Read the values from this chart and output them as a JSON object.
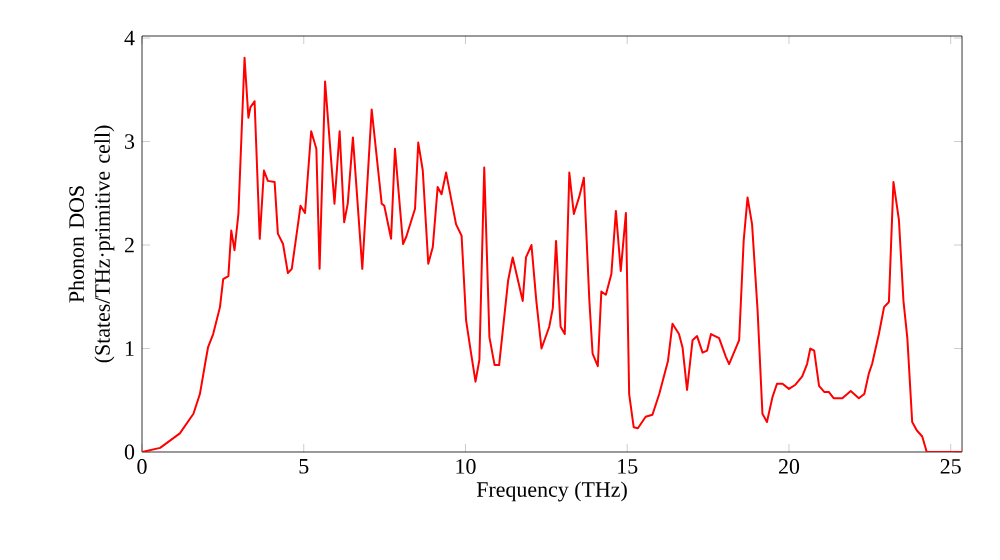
{
  "chart_data": {
    "type": "line",
    "xlabel": "Frequency (THz)",
    "ylabel": "Phonon DOS (States/THz·primitive cell)",
    "xlim": [
      0,
      25.35
    ],
    "ylim": [
      0,
      4.02
    ],
    "xticks": [
      0,
      5,
      10,
      15,
      20,
      25
    ],
    "yticks": [
      0,
      1,
      2,
      3,
      4
    ],
    "grid": false,
    "marker": "none",
    "line_style": "solid",
    "series": [
      {
        "color": "#ff0000",
        "x": [
          0,
          0.56,
          1.17,
          1.59,
          1.79,
          1.95,
          2.04,
          2.2,
          2.41,
          2.51,
          2.67,
          2.76,
          2.86,
          2.98,
          3.17,
          3.29,
          3.35,
          3.48,
          3.64,
          3.77,
          3.89,
          4.1,
          4.2,
          4.36,
          4.51,
          4.63,
          4.84,
          4.9,
          5.04,
          5.23,
          5.39,
          5.49,
          5.66,
          5.95,
          6.11,
          6.25,
          6.36,
          6.52,
          6.81,
          7.1,
          7.41,
          7.49,
          7.7,
          7.82,
          8.07,
          8.17,
          8.44,
          8.54,
          8.68,
          8.85,
          8.99,
          9.14,
          9.26,
          9.4,
          9.71,
          9.88,
          10.02,
          10.16,
          10.31,
          10.43,
          10.58,
          10.74,
          10.9,
          11.04,
          11.32,
          11.46,
          11.77,
          11.87,
          12.04,
          12.19,
          12.35,
          12.59,
          12.7,
          12.8,
          12.94,
          13.07,
          13.21,
          13.35,
          13.52,
          13.66,
          13.83,
          13.93,
          14.09,
          14.2,
          14.34,
          14.51,
          14.65,
          14.8,
          14.96,
          15.06,
          15.2,
          15.33,
          15.57,
          15.78,
          15.99,
          16.26,
          16.4,
          16.6,
          16.71,
          16.85,
          17.02,
          17.16,
          17.33,
          17.47,
          17.59,
          17.84,
          18.05,
          18.15,
          18.46,
          18.6,
          18.72,
          18.86,
          19.03,
          19.18,
          19.32,
          19.49,
          19.63,
          19.8,
          20.0,
          20.2,
          20.41,
          20.56,
          20.66,
          20.78,
          20.93,
          21.09,
          21.23,
          21.38,
          21.65,
          21.91,
          22.16,
          22.33,
          22.47,
          22.57,
          22.78,
          22.94,
          23.09,
          23.23,
          23.4,
          23.54,
          23.66,
          23.81,
          23.95,
          24.12,
          24.26,
          25.35
        ],
        "values": [
          0,
          0.04,
          0.18,
          0.37,
          0.56,
          0.85,
          1.01,
          1.14,
          1.4,
          1.67,
          1.7,
          2.14,
          1.95,
          2.3,
          3.81,
          3.23,
          3.33,
          3.39,
          2.06,
          2.72,
          2.62,
          2.61,
          2.11,
          2.01,
          1.73,
          1.77,
          2.24,
          2.38,
          2.31,
          3.1,
          2.93,
          1.77,
          3.58,
          2.4,
          3.1,
          2.22,
          2.4,
          3.04,
          1.77,
          3.31,
          2.4,
          2.38,
          2.06,
          2.93,
          2.01,
          2.08,
          2.35,
          2.99,
          2.72,
          1.82,
          1.98,
          2.56,
          2.49,
          2.7,
          2.2,
          2.09,
          1.27,
          0.98,
          0.68,
          0.89,
          2.75,
          1.11,
          0.84,
          0.84,
          1.66,
          1.88,
          1.46,
          1.88,
          2.0,
          1.46,
          1.0,
          1.21,
          1.39,
          2.04,
          1.21,
          1.14,
          2.7,
          2.3,
          2.47,
          2.65,
          1.46,
          0.95,
          0.83,
          1.55,
          1.52,
          1.72,
          2.33,
          1.75,
          2.31,
          0.56,
          0.24,
          0.23,
          0.34,
          0.36,
          0.56,
          0.88,
          1.24,
          1.14,
          1.01,
          0.6,
          1.08,
          1.12,
          0.96,
          0.98,
          1.14,
          1.1,
          0.92,
          0.85,
          1.08,
          2.04,
          2.46,
          2.2,
          1.37,
          0.37,
          0.29,
          0.53,
          0.66,
          0.66,
          0.61,
          0.65,
          0.73,
          0.85,
          1.0,
          0.98,
          0.64,
          0.58,
          0.58,
          0.52,
          0.52,
          0.59,
          0.52,
          0.56,
          0.76,
          0.85,
          1.14,
          1.4,
          1.45,
          2.61,
          2.24,
          1.46,
          1.1,
          0.29,
          0.21,
          0.15,
          0,
          0
        ]
      }
    ]
  }
}
